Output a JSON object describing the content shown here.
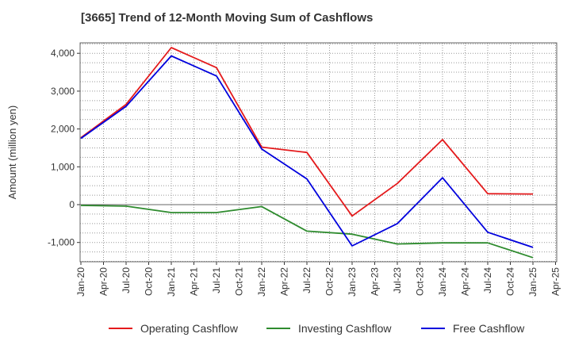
{
  "chart_data": {
    "type": "line",
    "title": "[3665]  Trend of 12-Month Moving Sum of Cashflows",
    "xlabel": "",
    "ylabel": "Amount (million yen)",
    "x_ticks": [
      "Jan-20",
      "Apr-20",
      "Jul-20",
      "Oct-20",
      "Jan-21",
      "Apr-21",
      "Jul-21",
      "Oct-21",
      "Jan-22",
      "Apr-22",
      "Jul-22",
      "Oct-22",
      "Jan-23",
      "Apr-23",
      "Jul-23",
      "Oct-23",
      "Jan-24",
      "Apr-24",
      "Jul-24",
      "Oct-24",
      "Jan-25",
      "Apr-25"
    ],
    "y_ticks": [
      -1000,
      0,
      1000,
      2000,
      3000,
      4000
    ],
    "y_tick_labels": [
      "-1,000",
      "0",
      "1,000",
      "2,000",
      "3,000",
      "4,000"
    ],
    "ylim": [
      -1500,
      4300
    ],
    "grid": true,
    "legend_position": "bottom",
    "x": [
      "Jan-20",
      "Jul-20",
      "Jan-21",
      "Jul-21",
      "Jan-22",
      "Jul-22",
      "Jan-23",
      "Jul-23",
      "Jan-24",
      "Jul-24",
      "Jan-25"
    ],
    "series": [
      {
        "name": "Operating Cashflow",
        "color": "#e41a1c",
        "values": [
          1770,
          2650,
          4150,
          3620,
          1520,
          1380,
          -300,
          560,
          1720,
          290,
          280
        ]
      },
      {
        "name": "Investing Cashflow",
        "color": "#2e8b2e",
        "values": [
          -20,
          -40,
          -210,
          -210,
          -50,
          -700,
          -780,
          -1040,
          -1010,
          -1010,
          -1400
        ]
      },
      {
        "name": "Free Cashflow",
        "color": "#0000dd",
        "values": [
          1750,
          2600,
          3930,
          3400,
          1470,
          680,
          -1090,
          -500,
          710,
          -730,
          -1130
        ]
      }
    ]
  }
}
